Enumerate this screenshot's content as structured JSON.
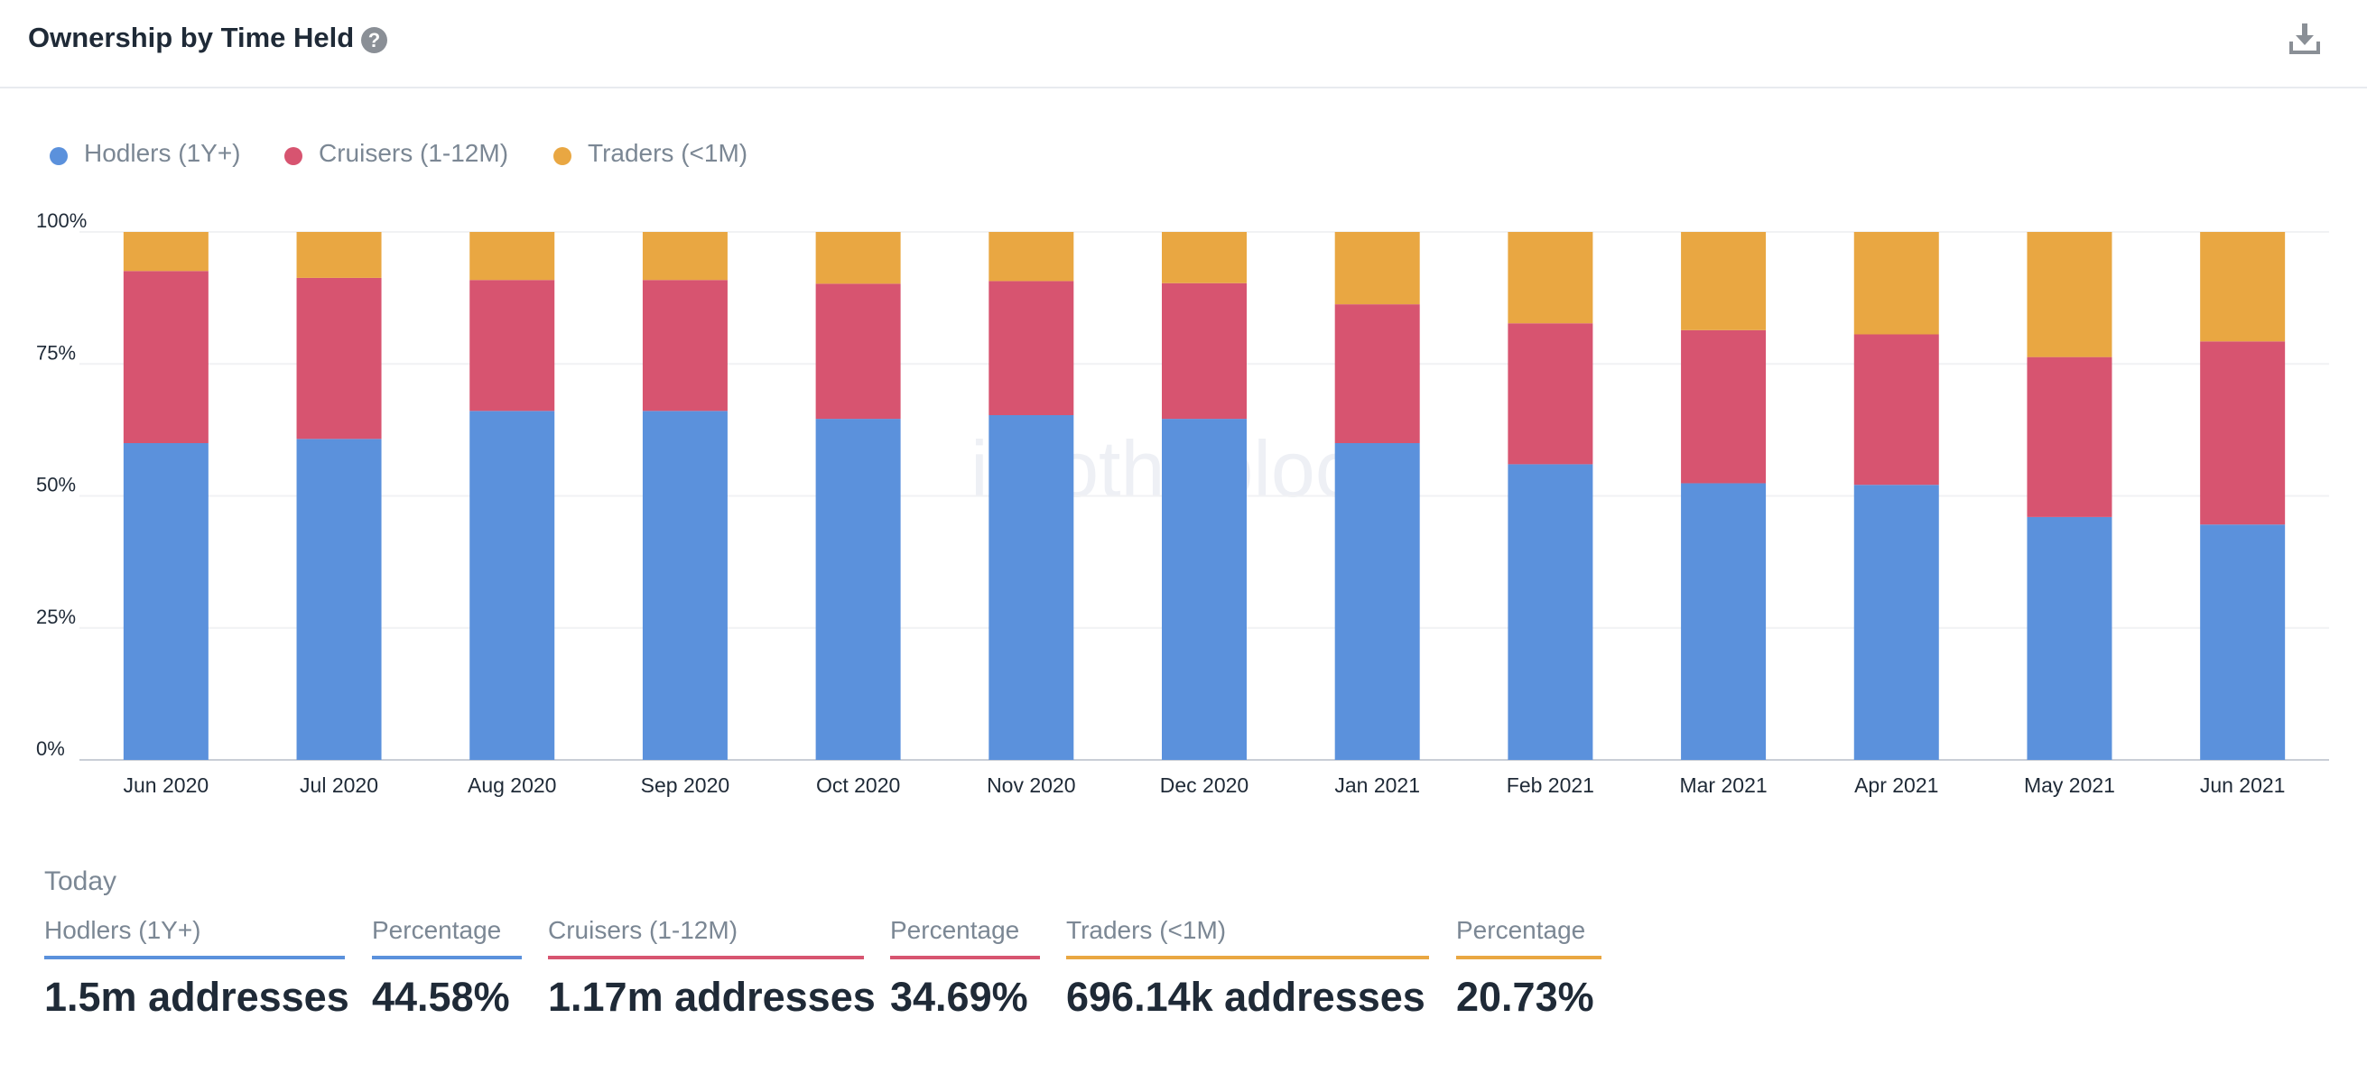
{
  "header": {
    "title": "Ownership by Time Held",
    "help_icon": "question-circle-icon",
    "download_icon": "download-icon"
  },
  "legend": [
    {
      "label": "Hodlers (1Y+)",
      "color": "#5b91dc"
    },
    {
      "label": "Cruisers (1-12M)",
      "color": "#d75470"
    },
    {
      "label": "Traders (<1M)",
      "color": "#e9a742"
    }
  ],
  "watermark": "intotheblock",
  "chart_data": {
    "type": "bar",
    "stacked": true,
    "categories": [
      "Jun 2020",
      "Jul 2020",
      "Aug 2020",
      "Sep 2020",
      "Oct 2020",
      "Nov 2020",
      "Dec 2020",
      "Jan 2021",
      "Feb 2021",
      "Mar 2021",
      "Apr 2021",
      "May 2021",
      "Jun 2021"
    ],
    "series": [
      {
        "name": "Hodlers (1Y+)",
        "color": "#5b91dc",
        "values": [
          60.0,
          60.8,
          66.1,
          66.1,
          64.6,
          65.3,
          64.6,
          60.0,
          56.0,
          52.4,
          52.1,
          46.0,
          44.58
        ]
      },
      {
        "name": "Cruisers (1-12M)",
        "color": "#d75470",
        "values": [
          32.6,
          30.5,
          24.8,
          24.8,
          25.6,
          25.4,
          25.7,
          26.3,
          26.7,
          29.0,
          28.5,
          30.3,
          34.69
        ]
      },
      {
        "name": "Traders (<1M)",
        "color": "#e9a742",
        "values": [
          7.4,
          8.7,
          9.1,
          9.1,
          9.8,
          9.3,
          9.7,
          13.7,
          17.3,
          18.6,
          19.4,
          23.7,
          20.73
        ]
      }
    ],
    "yticks": [
      "0%",
      "25%",
      "50%",
      "75%",
      "100%"
    ],
    "ylim": [
      0,
      100
    ],
    "grid": true,
    "legend_position": "top-left"
  },
  "today": {
    "label": "Today",
    "stats": [
      {
        "label": "Hodlers (1Y+)",
        "value": "1.5m addresses",
        "color": "#5b91dc"
      },
      {
        "label": "Percentage",
        "value": "44.58%",
        "color": "#5b91dc"
      },
      {
        "label": "Cruisers (1-12M)",
        "value": "1.17m addresses",
        "color": "#d75470"
      },
      {
        "label": "Percentage",
        "value": "34.69%",
        "color": "#d75470"
      },
      {
        "label": "Traders (<1M)",
        "value": "696.14k addresses",
        "color": "#e9a742"
      },
      {
        "label": "Percentage",
        "value": "20.73%",
        "color": "#e9a742"
      }
    ]
  }
}
